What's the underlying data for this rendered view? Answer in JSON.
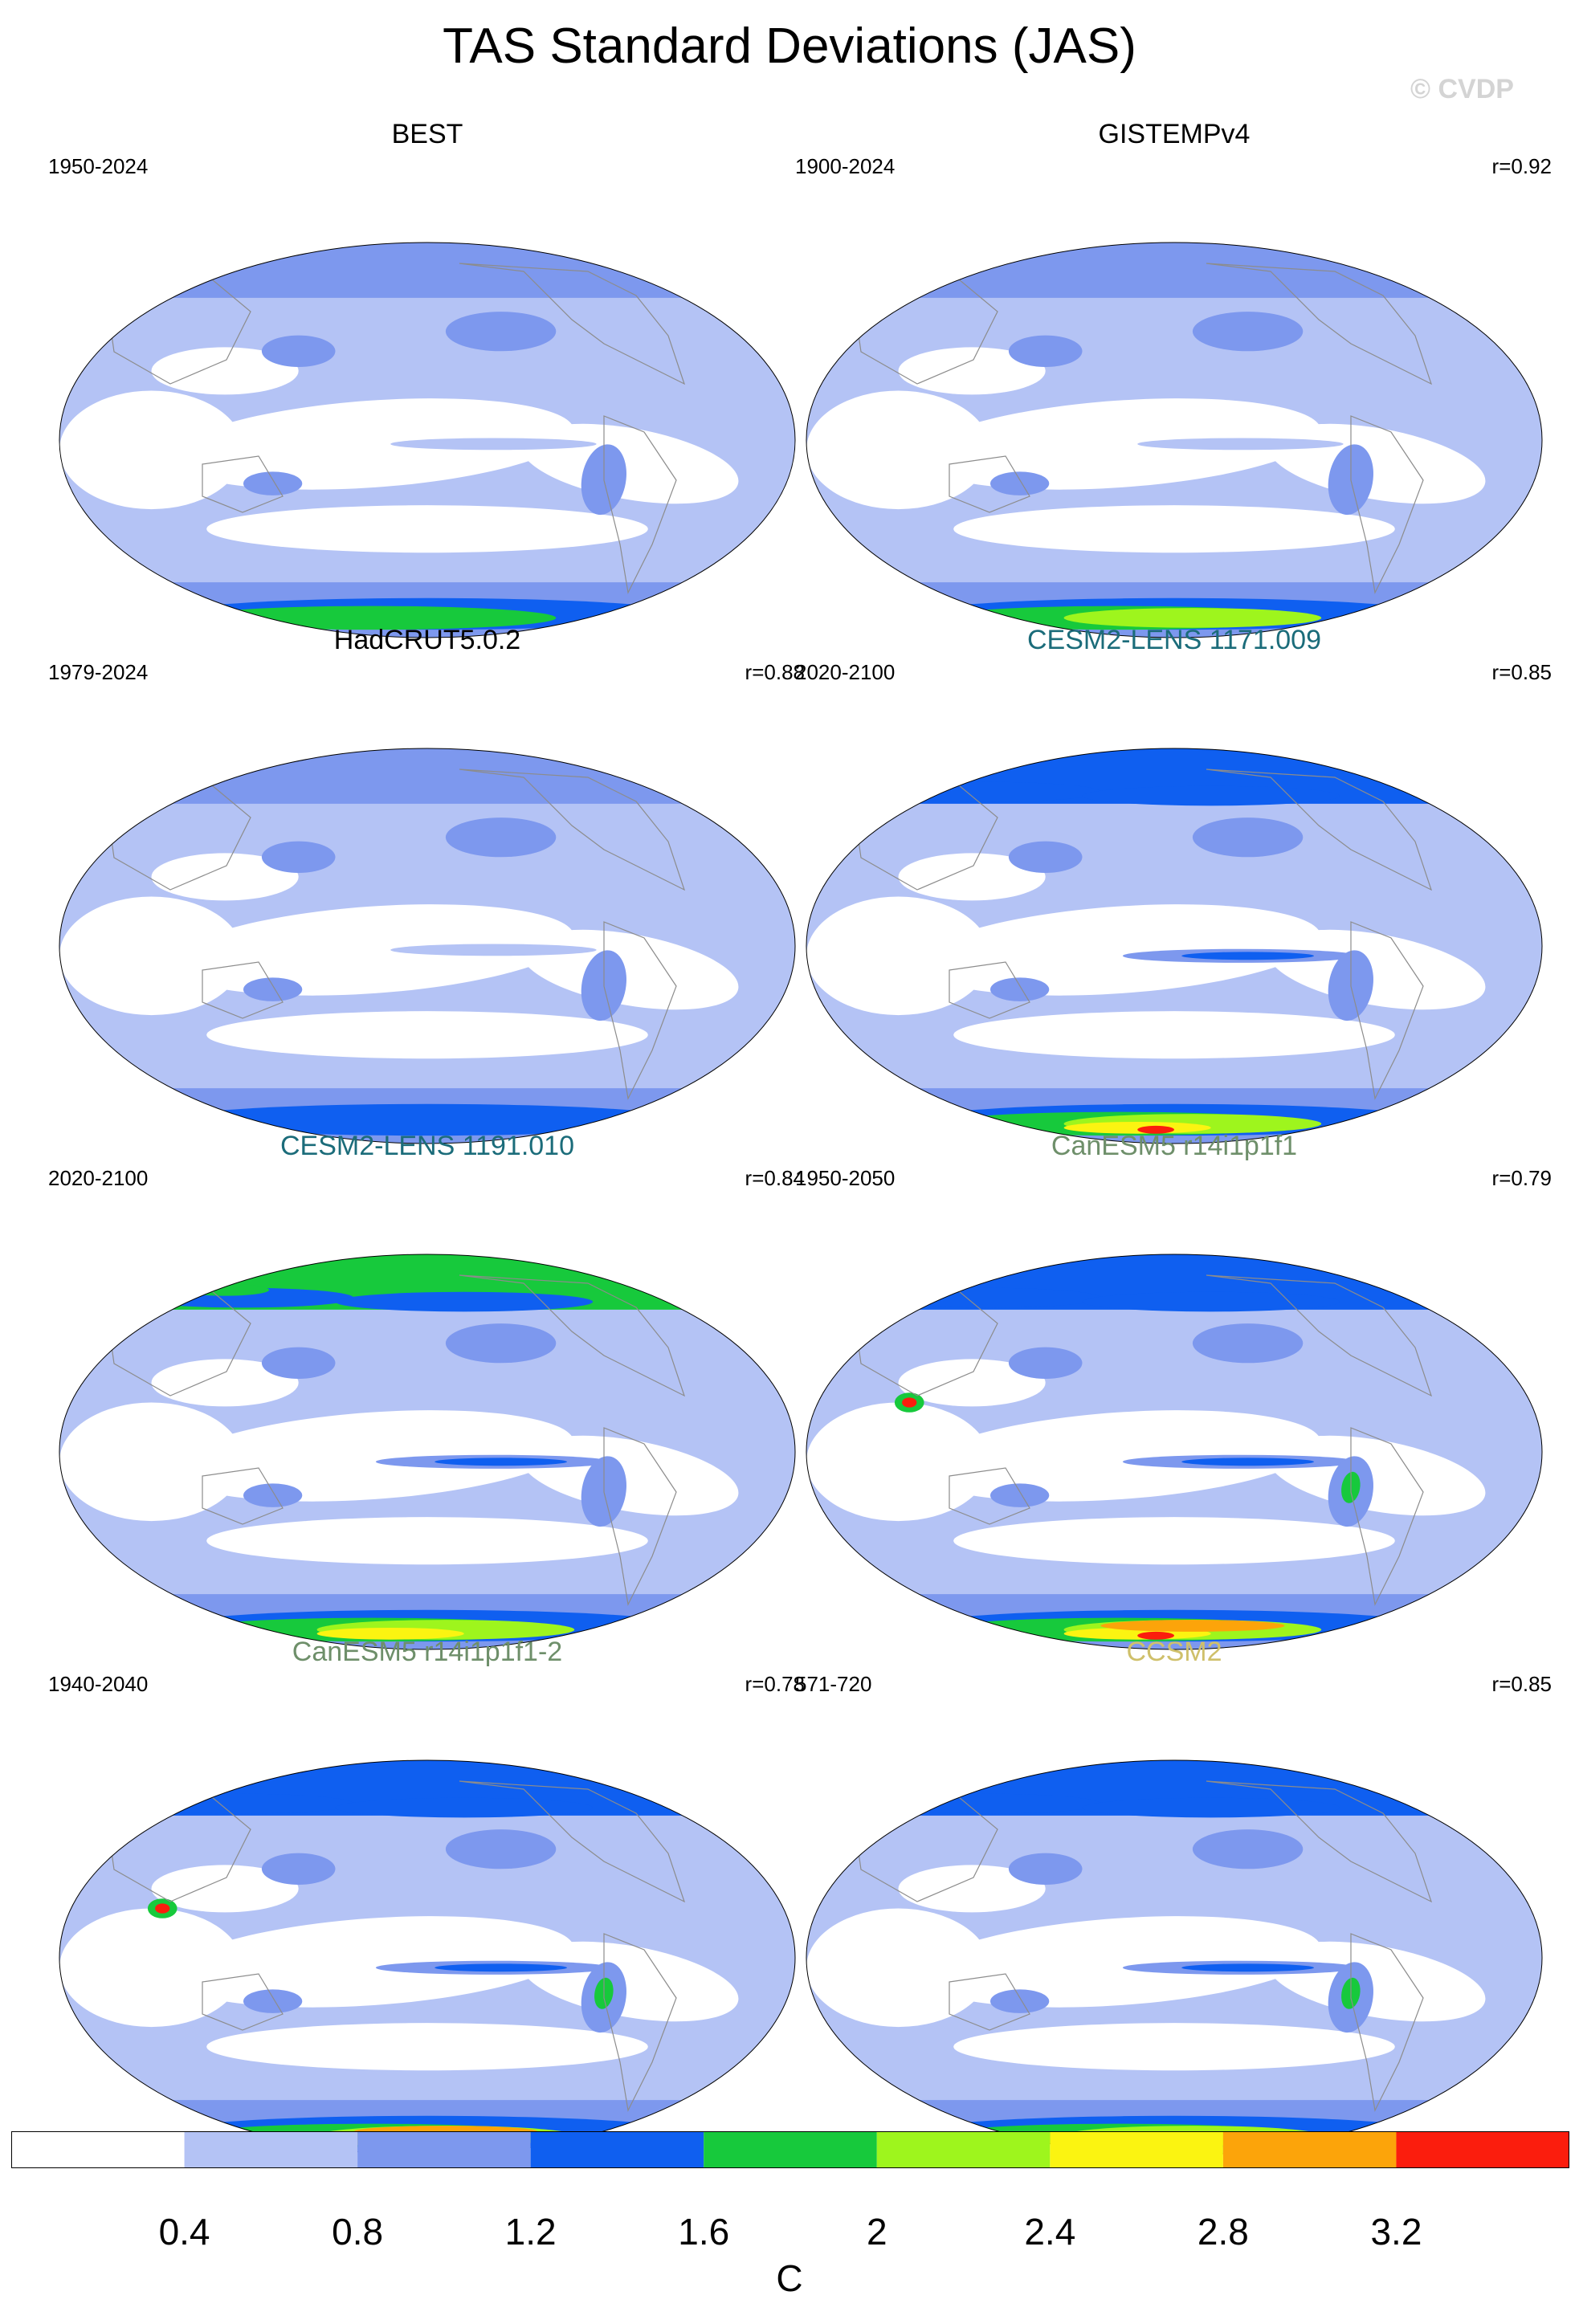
{
  "title": "TAS Standard Deviations (JAS)",
  "watermark": "© CVDP",
  "colors": {
    "levels": [
      "#ffffff",
      "#b4c3f5",
      "#7d98ee",
      "#0f5ff0",
      "#17c93c",
      "#9ef51d",
      "#fbf411",
      "#fca40a",
      "#fb1d0d"
    ],
    "coastline": "#8c8c8c",
    "model_title_cesm2": "#1b6c7a",
    "model_title_canesm5": "#6e8f6a",
    "model_title_ccsm2": "#cfc06a"
  },
  "panels": [
    {
      "title": "BEST",
      "period": "1950-2024",
      "r": ""
    },
    {
      "title": "GISTEMPv4",
      "period": "1900-2024",
      "r": "r=0.92"
    },
    {
      "title": "HadCRUT5.0.2",
      "period": "1979-2024",
      "r": "r=0.88"
    },
    {
      "title": "CESM2-LENS 1171.009",
      "period": "2020-2100",
      "r": "r=0.85"
    },
    {
      "title": "CESM2-LENS 1191.010",
      "period": "2020-2100",
      "r": "r=0.84"
    },
    {
      "title": "CanESM5 r14i1p1f1",
      "period": "1950-2050",
      "r": "r=0.79"
    },
    {
      "title": "CanESM5 r14i1p1f1-2",
      "period": "1940-2040",
      "r": "r=0.78"
    },
    {
      "title": "CCSM2",
      "period": "571-720",
      "r": "r=0.85"
    }
  ],
  "colorbar": {
    "labels": [
      "0.4",
      "0.8",
      "1.2",
      "1.6",
      "2",
      "2.4",
      "2.8",
      "3.2"
    ],
    "unit": "C"
  },
  "chart_data": {
    "type": "heatmap",
    "title": "TAS Standard Deviations (JAS)",
    "projection": "Robinson (global, Pacific-centered)",
    "variable": "TAS standard deviation",
    "season": "JAS",
    "units": "C",
    "contour_levels": [
      0.4,
      0.8,
      1.2,
      1.6,
      2.0,
      2.4,
      2.8,
      3.2
    ],
    "panels": [
      {
        "name": "BEST",
        "period": "1950-2024",
        "r": null,
        "max_level_reached": 2.4
      },
      {
        "name": "GISTEMPv4",
        "period": "1900-2024",
        "r": 0.92,
        "max_level_reached": 2.4
      },
      {
        "name": "HadCRUT5.0.2",
        "period": "1979-2024",
        "r": 0.88,
        "max_level_reached": 1.6
      },
      {
        "name": "CESM2-LENS 1171.009",
        "period": "2020-2100",
        "r": 0.85,
        "max_level_reached": 3.2
      },
      {
        "name": "CESM2-LENS 1191.010",
        "period": "2020-2100",
        "r": 0.84,
        "max_level_reached": 2.8
      },
      {
        "name": "CanESM5 r14i1p1f1",
        "period": "1950-2050",
        "r": 0.79,
        "max_level_reached": 3.2
      },
      {
        "name": "CanESM5 r14i1p1f1-2",
        "period": "1940-2040",
        "r": 0.78,
        "max_level_reached": 3.2
      },
      {
        "name": "CCSM2",
        "period": "571-720",
        "r": 0.85,
        "max_level_reached": 3.2
      }
    ]
  }
}
